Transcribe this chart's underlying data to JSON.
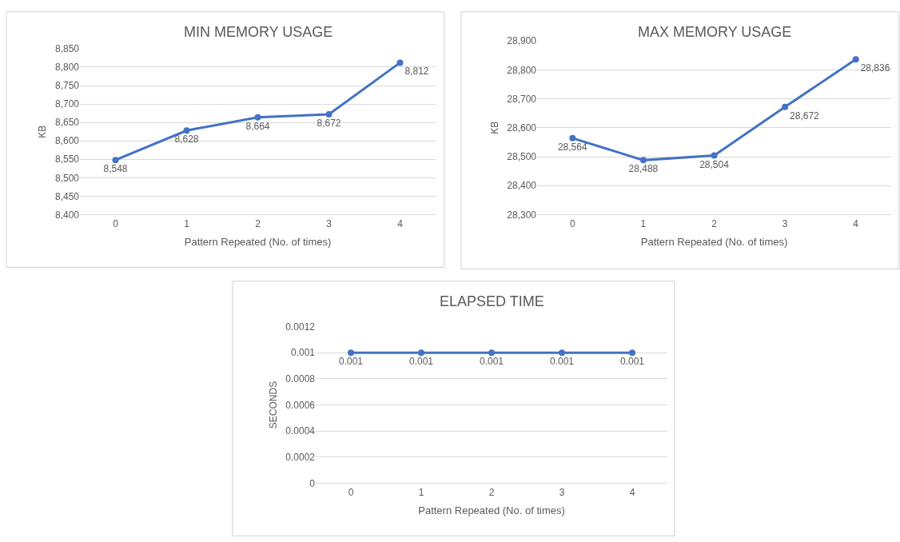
{
  "chart_data": [
    {
      "type": "line",
      "title": "MIN MEMORY USAGE",
      "xlabel": "Pattern Repeated (No. of times)",
      "ylabel": "KB",
      "categories": [
        "0",
        "1",
        "2",
        "3",
        "4"
      ],
      "series": [
        {
          "color": "#4472c4",
          "values": [
            8548,
            8628,
            8664,
            8672,
            8812
          ],
          "value_labels": [
            "8,548",
            "8,628",
            "8,664",
            "8,672",
            "8,812"
          ]
        }
      ],
      "ylim": [
        8400,
        8850
      ],
      "yticks": [
        {
          "value": 8400,
          "label": "8,400"
        },
        {
          "value": 8450,
          "label": "8,450"
        },
        {
          "value": 8500,
          "label": "8,500"
        },
        {
          "value": 8550,
          "label": "8,550"
        },
        {
          "value": 8600,
          "label": "8,600"
        },
        {
          "value": 8650,
          "label": "8,650"
        },
        {
          "value": 8700,
          "label": "8,700"
        },
        {
          "value": 8750,
          "label": "8,750"
        },
        {
          "value": 8800,
          "label": "8,800"
        },
        {
          "value": 8850,
          "label": "8,850"
        }
      ],
      "grid": "y",
      "marker": "circle",
      "line_style": "solid"
    },
    {
      "type": "line",
      "title": "MAX MEMORY USAGE",
      "xlabel": "Pattern Repeated (No. of times)",
      "ylabel": "KB",
      "categories": [
        "0",
        "1",
        "2",
        "3",
        "4"
      ],
      "series": [
        {
          "color": "#4472c4",
          "values": [
            28564,
            28488,
            28504,
            28672,
            28836
          ],
          "value_labels": [
            "28,564",
            "28,488",
            "28,504",
            "28,672",
            "28,836"
          ]
        }
      ],
      "ylim": [
        28300,
        28900
      ],
      "yticks": [
        {
          "value": 28300,
          "label": "28,300"
        },
        {
          "value": 28400,
          "label": "28,400"
        },
        {
          "value": 28500,
          "label": "28,500"
        },
        {
          "value": 28600,
          "label": "28,600"
        },
        {
          "value": 28700,
          "label": "28,700"
        },
        {
          "value": 28800,
          "label": "28,800"
        },
        {
          "value": 28900,
          "label": "28,900"
        }
      ],
      "grid": "y",
      "marker": "circle",
      "line_style": "solid"
    },
    {
      "type": "line",
      "title": "ELAPSED TIME",
      "xlabel": "Pattern Repeated (No. of times)",
      "ylabel": "SECONDS",
      "categories": [
        "0",
        "1",
        "2",
        "3",
        "4"
      ],
      "series": [
        {
          "color": "#4472c4",
          "values": [
            0.001,
            0.001,
            0.001,
            0.001,
            0.001
          ]
        }
      ],
      "data_labels": true,
      "ylim": [
        0,
        0.0012
      ],
      "yticks": [
        0,
        0.0002,
        0.0004,
        0.0006,
        0.0008,
        0.001,
        0.0012
      ],
      "grid": "y",
      "marker": "circle",
      "line_style": "solid"
    }
  ]
}
